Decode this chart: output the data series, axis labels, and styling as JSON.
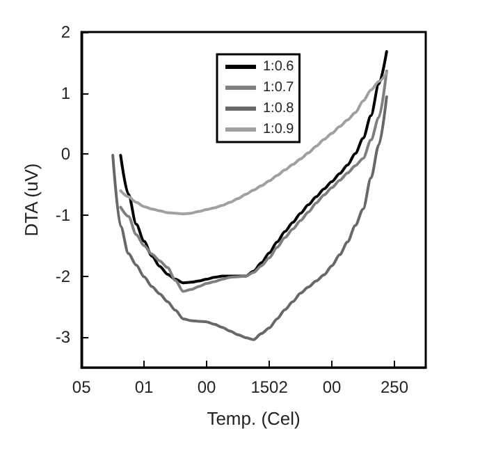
{
  "chart_data": {
    "type": "line",
    "xlabel": "Temp. (Cel)",
    "ylabel": "DTA (uV)",
    "ylim": [
      -3.5,
      2
    ],
    "categories": [
      "05",
      null,
      null,
      null,
      null,
      null,
      null,
      null,
      "01",
      null,
      null,
      null,
      null,
      null,
      null,
      null,
      "00",
      null,
      null,
      null,
      null,
      null,
      null,
      null,
      "1502",
      null,
      null,
      null,
      null,
      null,
      null,
      null,
      "00",
      null,
      null,
      null,
      null,
      null,
      null,
      null,
      "250",
      null,
      null,
      null,
      null
    ],
    "yticks": [
      -3,
      -2,
      -1,
      0,
      1,
      2
    ],
    "grid": false,
    "legend": "top",
    "marker": "none",
    "line_style": "solid",
    "series": [
      {
        "name": "1:0.6",
        "color": "#000000",
        "values": [
          null,
          null,
          null,
          null,
          null,
          -0.02,
          -0.66,
          -1.15,
          -1.43,
          -1.67,
          -1.84,
          -1.97,
          -2.05,
          -2.11,
          -2.1,
          -2.08,
          -2.05,
          -2.02,
          -2.0,
          -2.0,
          -2.0,
          -2.0,
          -1.92,
          -1.78,
          -1.62,
          -1.44,
          -1.27,
          -1.12,
          -0.97,
          -0.83,
          -0.7,
          -0.57,
          -0.45,
          -0.32,
          -0.18,
          0.01,
          0.26,
          0.63,
          1.15,
          1.68,
          null,
          null,
          null,
          null,
          null
        ]
      },
      {
        "name": "1:0.7",
        "color": "#7f7f7f",
        "values": [
          null,
          null,
          null,
          null,
          null,
          -0.87,
          -1.02,
          -1.32,
          -1.5,
          -1.64,
          -1.75,
          -1.86,
          -2.07,
          -2.25,
          -2.22,
          -2.17,
          -2.12,
          -2.09,
          -2.05,
          -2.02,
          -2.01,
          -2.0,
          -1.94,
          -1.83,
          -1.7,
          -1.53,
          -1.37,
          -1.23,
          -1.09,
          -0.95,
          -0.8,
          -0.67,
          -0.55,
          -0.43,
          -0.31,
          -0.19,
          -0.07,
          0.23,
          0.6,
          1.36,
          null,
          null,
          null,
          null,
          null
        ]
      },
      {
        "name": "1:0.8",
        "color": "#686868",
        "values": [
          null,
          null,
          null,
          null,
          -0.02,
          -1.18,
          -1.63,
          -1.82,
          -2.01,
          -2.17,
          -2.29,
          -2.42,
          -2.56,
          -2.7,
          -2.73,
          -2.74,
          -2.75,
          -2.79,
          -2.84,
          -2.9,
          -2.96,
          -3.01,
          -3.04,
          -2.94,
          -2.85,
          -2.7,
          -2.55,
          -2.42,
          -2.28,
          -2.18,
          -2.08,
          -1.98,
          -1.83,
          -1.65,
          -1.44,
          -1.17,
          -0.9,
          -0.39,
          0.15,
          0.94,
          null,
          null,
          null,
          null,
          null
        ]
      },
      {
        "name": "1:0.9",
        "color": "#a0a0a0",
        "values": [
          null,
          null,
          null,
          null,
          null,
          -0.6,
          -0.7,
          -0.79,
          -0.86,
          -0.9,
          -0.93,
          -0.96,
          -0.97,
          -0.98,
          -0.97,
          -0.94,
          -0.91,
          -0.88,
          -0.84,
          -0.79,
          -0.73,
          -0.66,
          -0.59,
          -0.52,
          -0.44,
          -0.35,
          -0.26,
          -0.17,
          -0.08,
          0.02,
          0.13,
          0.24,
          0.34,
          0.45,
          0.56,
          0.68,
          0.87,
          1.05,
          1.19,
          1.33,
          null,
          null,
          null,
          null,
          null
        ]
      }
    ]
  }
}
